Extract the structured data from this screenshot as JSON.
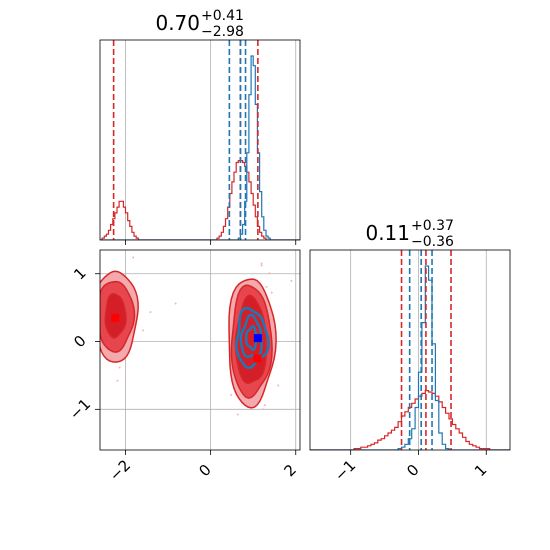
{
  "chart_data": [
    {
      "type": "histogram",
      "panel": "top-left",
      "title": {
        "median": "0.70",
        "plus": "+0.41",
        "minus": "−2.98"
      },
      "xlim": [
        -2.6,
        2.1
      ],
      "grid": true,
      "bin_edges": [
        -2.6,
        -2.55,
        -2.5,
        -2.45,
        -2.4,
        -2.35,
        -2.3,
        -2.25,
        -2.2,
        -2.15,
        -2.1,
        -2.05,
        -2.0,
        -1.95,
        -1.9,
        -1.85,
        -1.8,
        -1.75,
        -1.7,
        -1.65,
        -1.6,
        -1.55,
        -1.5,
        -1.45,
        -1.4,
        -1.35,
        -1.3,
        -1.25,
        -1.2,
        -1.15,
        -1.1,
        -1.05,
        -1.0,
        -0.95,
        -0.9,
        -0.85,
        -0.8,
        -0.75,
        -0.7,
        -0.65,
        -0.6,
        -0.55,
        -0.5,
        -0.45,
        -0.4,
        -0.35,
        -0.3,
        -0.25,
        -0.2,
        -0.15,
        -0.1,
        -0.05,
        0.0,
        0.05,
        0.1,
        0.15,
        0.2,
        0.25,
        0.3,
        0.35,
        0.4,
        0.45,
        0.5,
        0.55,
        0.6,
        0.65,
        0.7,
        0.75,
        0.8,
        0.85,
        0.9,
        0.95,
        1.0,
        1.05,
        1.1,
        1.15,
        1.2,
        1.25,
        1.3,
        1.35,
        1.4,
        1.45,
        1.5,
        1.55,
        1.6,
        1.65,
        1.7,
        1.75,
        1.8,
        1.85,
        1.9,
        1.95,
        2.0,
        2.05,
        2.1
      ],
      "series": [
        {
          "color": "#d62728",
          "counts": [
            0,
            1,
            2,
            3,
            5,
            8,
            11,
            14,
            17,
            20,
            20,
            17,
            14,
            10,
            7,
            4,
            2,
            1,
            0,
            0,
            0,
            0,
            0,
            0,
            0,
            0,
            0,
            0,
            0,
            0,
            0,
            0,
            0,
            0,
            0,
            0,
            0,
            0,
            0,
            0,
            0,
            0,
            0,
            0,
            0,
            0,
            0,
            0,
            0,
            0,
            0,
            0,
            0,
            0,
            0,
            1,
            2,
            4,
            7,
            11,
            17,
            24,
            30,
            35,
            40,
            41,
            41,
            40,
            38,
            35,
            30,
            24,
            18,
            12,
            7,
            4,
            2,
            1,
            0,
            0,
            0,
            0,
            0,
            0,
            0,
            0,
            0,
            0,
            0,
            0,
            0,
            0,
            0,
            0
          ]
        },
        {
          "color": "#1f77b4",
          "counts": [
            0,
            0,
            0,
            0,
            0,
            0,
            0,
            0,
            0,
            0,
            0,
            0,
            0,
            0,
            0,
            0,
            0,
            0,
            0,
            0,
            0,
            0,
            0,
            0,
            0,
            0,
            0,
            0,
            0,
            0,
            0,
            0,
            0,
            0,
            0,
            0,
            0,
            0,
            0,
            0,
            0,
            0,
            0,
            0,
            0,
            0,
            0,
            0,
            0,
            0,
            0,
            0,
            0,
            0,
            0,
            0,
            0,
            0,
            0,
            0,
            0,
            0,
            0,
            0,
            0,
            1,
            3,
            8,
            20,
            45,
            75,
            95,
            90,
            70,
            45,
            25,
            12,
            5,
            2,
            1,
            0,
            0,
            0,
            0,
            0,
            0,
            0,
            0,
            0,
            0,
            0,
            0,
            0,
            0
          ]
        }
      ],
      "quantile_lines": [
        {
          "x": -2.28,
          "color": "#d62728"
        },
        {
          "x": 0.7,
          "color": "#d62728"
        },
        {
          "x": 1.11,
          "color": "#d62728"
        },
        {
          "x": 0.44,
          "color": "#1f77b4"
        },
        {
          "x": 0.7,
          "color": "#1f77b4"
        },
        {
          "x": 0.82,
          "color": "#1f77b4"
        }
      ]
    },
    {
      "type": "contour",
      "panel": "bottom-left",
      "xlim": [
        -2.6,
        2.1
      ],
      "ylim": [
        -1.6,
        1.35
      ],
      "xticks": [
        -2,
        0,
        2
      ],
      "xtick_labels": [
        "−2",
        "0",
        "2"
      ],
      "yticks": [
        -1,
        0,
        1
      ],
      "ytick_labels": [
        "−1",
        "0",
        "1"
      ],
      "grid": true,
      "red_modes": [
        {
          "cx": -2.24,
          "cy": 0.38,
          "levels": [
            [
              0.52,
              0.67
            ],
            [
              0.42,
              0.52
            ],
            [
              0.24,
              0.32
            ]
          ]
        },
        {
          "cx": 0.95,
          "cy": 0.0,
          "levels": [
            [
              0.55,
              0.95
            ],
            [
              0.47,
              0.82
            ],
            [
              0.36,
              0.64
            ]
          ]
        }
      ],
      "red_markers": [
        {
          "x": -2.24,
          "y": 0.35
        },
        {
          "x": 1.1,
          "y": -0.25
        }
      ],
      "blue_mode": {
        "cx": 0.96,
        "cy": 0.05,
        "levels": [
          [
            0.36,
            0.42
          ],
          [
            0.24,
            0.3
          ],
          [
            0.12,
            0.16
          ]
        ]
      },
      "blue_marker": {
        "x": 1.11,
        "y": 0.05
      }
    },
    {
      "type": "histogram",
      "panel": "bottom-right",
      "title": {
        "median": "0.11",
        "plus": "+0.37",
        "minus": "−0.36"
      },
      "xlim": [
        -1.6,
        1.35
      ],
      "xticks": [
        -1,
        0,
        1
      ],
      "xtick_labels": [
        "−1",
        "0",
        "1"
      ],
      "grid": true,
      "bin_edges": [
        -1.6,
        -1.55,
        -1.5,
        -1.45,
        -1.4,
        -1.35,
        -1.3,
        -1.25,
        -1.2,
        -1.15,
        -1.1,
        -1.05,
        -1.0,
        -0.95,
        -0.9,
        -0.85,
        -0.8,
        -0.75,
        -0.7,
        -0.65,
        -0.6,
        -0.55,
        -0.5,
        -0.45,
        -0.4,
        -0.35,
        -0.3,
        -0.25,
        -0.2,
        -0.15,
        -0.1,
        -0.05,
        0.0,
        0.05,
        0.1,
        0.15,
        0.2,
        0.25,
        0.3,
        0.35,
        0.4,
        0.45,
        0.5,
        0.55,
        0.6,
        0.65,
        0.7,
        0.75,
        0.8,
        0.85,
        0.9,
        0.95,
        1.0,
        1.05,
        1.1,
        1.15,
        1.2,
        1.25,
        1.3,
        1.35
      ],
      "series": [
        {
          "color": "#d62728",
          "counts": [
            0,
            0,
            0,
            0,
            0,
            0,
            0,
            0,
            0,
            0,
            0,
            0,
            0,
            1,
            1,
            2,
            2,
            3,
            4,
            5,
            7,
            8,
            10,
            12,
            14,
            16,
            20,
            24,
            27,
            30,
            33,
            36,
            38,
            40,
            42,
            41,
            40,
            38,
            34,
            30,
            26,
            22,
            18,
            15,
            12,
            9,
            6,
            4,
            3,
            2,
            1,
            1,
            1,
            0,
            0,
            0,
            0,
            0,
            0
          ]
        },
        {
          "color": "#1f77b4",
          "counts": [
            0,
            0,
            0,
            0,
            0,
            0,
            0,
            0,
            0,
            0,
            0,
            0,
            0,
            0,
            0,
            0,
            0,
            0,
            0,
            0,
            0,
            0,
            0,
            0,
            0,
            0,
            1,
            2,
            4,
            8,
            15,
            30,
            55,
            90,
            130,
            120,
            75,
            35,
            12,
            4,
            1,
            0,
            0,
            0,
            0,
            0,
            0,
            0,
            0,
            0,
            0,
            0,
            0,
            0,
            0,
            0,
            0,
            0,
            0
          ]
        }
      ],
      "quantile_lines": [
        {
          "x": -0.25,
          "color": "#d62728"
        },
        {
          "x": 0.11,
          "color": "#d62728"
        },
        {
          "x": 0.48,
          "color": "#d62728"
        },
        {
          "x": -0.13,
          "color": "#1f77b4"
        },
        {
          "x": 0.04,
          "color": "#1f77b4"
        },
        {
          "x": 0.2,
          "color": "#1f77b4"
        }
      ]
    }
  ],
  "colors": {
    "red": "#d62728",
    "blue": "#1f77b4",
    "grid": "#b0b0b0"
  }
}
